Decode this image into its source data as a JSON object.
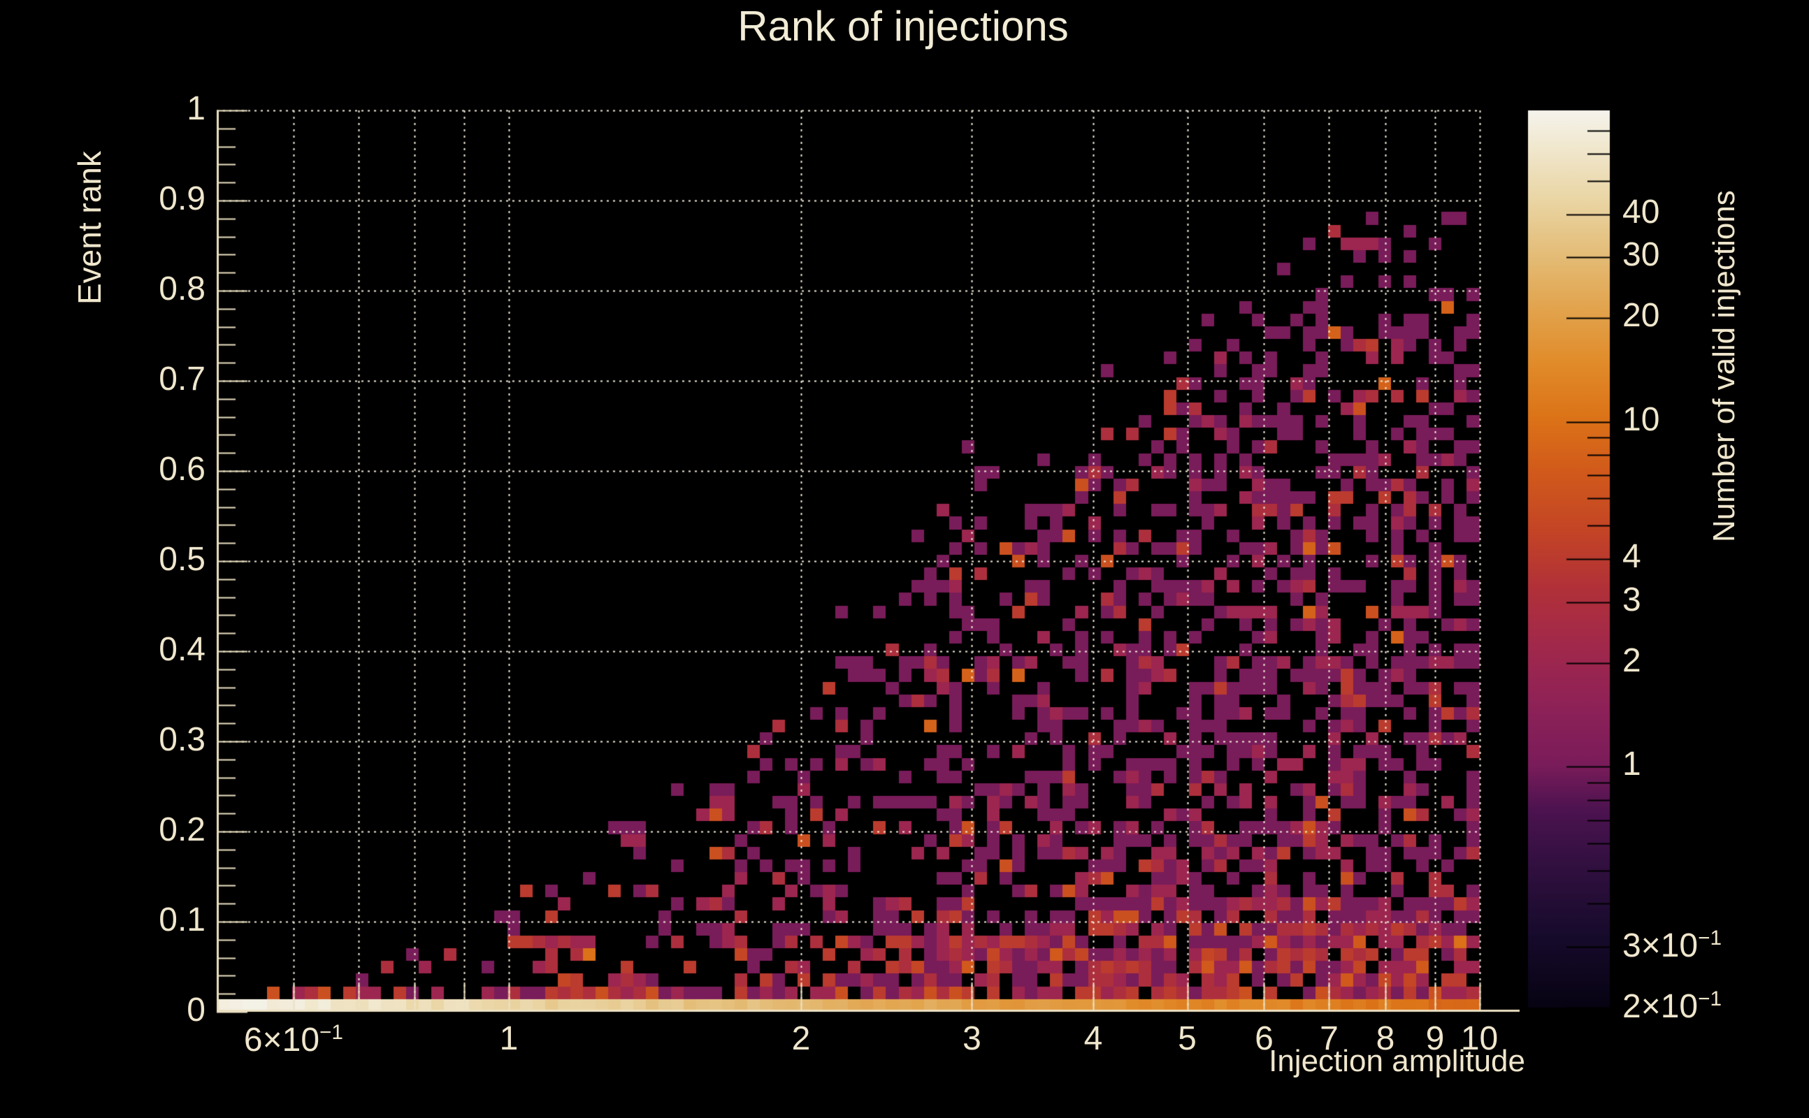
{
  "title": "Rank of injections",
  "colors": {
    "background": "#000000",
    "text": "#efe6cc",
    "title_text": "#f2ecd6",
    "axis_line": "#ece1c2",
    "grid_dots": "#f2ebd7",
    "colorbar_tick": "#000000"
  },
  "axes": {
    "x": {
      "title": "Injection amplitude",
      "scale": "log",
      "axis_range": [
        0.5,
        11
      ],
      "data_range": [
        0.5,
        10
      ],
      "gridlines": [
        0.6,
        0.7,
        0.8,
        0.9,
        1,
        2,
        3,
        4,
        5,
        6,
        7,
        8,
        9,
        10
      ],
      "tick_labels": [
        {
          "v": 0.6,
          "base": "6×10",
          "exp": "−1"
        },
        {
          "v": 1,
          "text": "1"
        },
        {
          "v": 2,
          "text": "2"
        },
        {
          "v": 3,
          "text": "3"
        },
        {
          "v": 4,
          "text": "4"
        },
        {
          "v": 5,
          "text": "5"
        },
        {
          "v": 6,
          "text": "6"
        },
        {
          "v": 7,
          "text": "7"
        },
        {
          "v": 8,
          "text": "8"
        },
        {
          "v": 9,
          "text": "9"
        },
        {
          "v": 10,
          "text": "10"
        }
      ]
    },
    "y": {
      "title": "Event rank",
      "scale": "linear",
      "range": [
        0,
        1
      ],
      "major_step": 0.1,
      "minor_step": 0.02,
      "tick_labels": [
        {
          "v": 1,
          "text": "1"
        },
        {
          "v": 0.9,
          "text": "0.9"
        },
        {
          "v": 0.8,
          "text": "0.8"
        },
        {
          "v": 0.7,
          "text": "0.7"
        },
        {
          "v": 0.6,
          "text": "0.6"
        },
        {
          "v": 0.5,
          "text": "0.5"
        },
        {
          "v": 0.4,
          "text": "0.4"
        },
        {
          "v": 0.3,
          "text": "0.3"
        },
        {
          "v": 0.2,
          "text": "0.2"
        },
        {
          "v": 0.1,
          "text": "0.1"
        },
        {
          "v": 0,
          "text": "0"
        }
      ]
    },
    "z": {
      "title": "Number of valid injections",
      "scale": "log",
      "range": [
        0.2,
        80
      ],
      "tick_labels": [
        {
          "v": 40,
          "text": "40"
        },
        {
          "v": 30,
          "text": "30"
        },
        {
          "v": 20,
          "text": "20"
        },
        {
          "v": 10,
          "text": "10"
        },
        {
          "v": 4,
          "text": "4"
        },
        {
          "v": 3,
          "text": "3"
        },
        {
          "v": 2,
          "text": "2"
        },
        {
          "v": 1,
          "text": "1"
        },
        {
          "v": 0.3,
          "base": "3×10",
          "exp": "−1"
        },
        {
          "v": 0.2,
          "base": "2×10",
          "exp": "−1"
        }
      ],
      "minor_ticks": [
        50,
        60,
        70,
        5,
        6,
        7,
        8,
        9,
        0.4,
        0.5,
        0.6,
        0.7,
        0.8,
        0.9
      ]
    }
  },
  "chart_data": {
    "type": "heatmap",
    "title": "Rank of injections",
    "xlabel": "Injection amplitude",
    "ylabel": "Event rank",
    "zlabel": "Number of valid injections",
    "x_bins": 100,
    "y_bins": 71,
    "x_range": [
      0.5,
      10
    ],
    "y_range": [
      0,
      1
    ],
    "z_range": [
      0.2,
      80
    ],
    "grid": true,
    "legend_position": "right-colorbar",
    "distribution_notes": "2D histogram, log x and log z. Bottom row (rank≈0) is filled for every amplitude with very high counts (≈70 at amplitude 0.5, cream-white) fading to ≈9 at amplitude 10 (orange). Scattered occupied bins appear above an envelope of maximum rank that rises with amplitude: ≈0.07 at 0.75, ≈0.14 at 1, ≈0.33 at 2, ≈0.63 at 3, ≈0.70 at 4.2, ≈0.78 at 5, ≈0.84 at 6, ≈0.88–0.89 at 7–10. Most occupied bins hold 1 count (dark magenta); counts 2–4 (crimson/red) are common below rank 0.2 and counts 4–10 (orange) concentrate in the band rank<0.1 for amplitudes 1.5–6.",
    "generator": {
      "seed": 20240917,
      "envelope": [
        [
          0.55,
          0.013
        ],
        [
          0.68,
          0.03
        ],
        [
          0.75,
          0.07
        ],
        [
          0.85,
          0.11
        ],
        [
          1.0,
          0.14
        ],
        [
          1.2,
          0.19
        ],
        [
          1.5,
          0.28
        ],
        [
          1.8,
          0.33
        ],
        [
          2.2,
          0.42
        ],
        [
          2.6,
          0.52
        ],
        [
          3.0,
          0.63
        ],
        [
          3.6,
          0.64
        ],
        [
          4.2,
          0.7
        ],
        [
          5.0,
          0.78
        ],
        [
          6.0,
          0.84
        ],
        [
          7.0,
          0.88
        ],
        [
          8.0,
          0.86
        ],
        [
          9.0,
          0.885
        ],
        [
          10.0,
          0.89
        ]
      ],
      "base_prob": [
        [
          0.55,
          0.0
        ],
        [
          0.7,
          0.05
        ],
        [
          0.9,
          0.11
        ],
        [
          1.2,
          0.17
        ],
        [
          1.8,
          0.27
        ],
        [
          2.5,
          0.36
        ],
        [
          3.5,
          0.44
        ],
        [
          5,
          0.48
        ],
        [
          7,
          0.52
        ],
        [
          10,
          0.54
        ]
      ],
      "row2_prob": [
        [
          0.55,
          0.25
        ],
        [
          0.8,
          0.45
        ],
        [
          1.2,
          0.65
        ],
        [
          2,
          0.85
        ],
        [
          3,
          0.9
        ],
        [
          6,
          0.85
        ],
        [
          10,
          0.8
        ]
      ],
      "bottom_row_counts": [
        [
          0.5,
          72
        ],
        [
          0.7,
          58
        ],
        [
          1,
          45
        ],
        [
          1.4,
          36
        ],
        [
          2,
          28
        ],
        [
          3,
          20
        ],
        [
          4.5,
          15
        ],
        [
          6,
          13
        ],
        [
          8,
          11
        ],
        [
          10,
          9
        ]
      ],
      "low_band_boost": 1.45,
      "very_low_boost": 1.6,
      "edge_prob_factor": 0.3,
      "outlier_prob": 0.012,
      "max_prob": 0.88,
      "count_weights_low": [
        [
          1,
          0.32
        ],
        [
          2,
          0.24
        ],
        [
          3,
          0.18
        ],
        [
          4,
          0.12
        ],
        [
          5,
          0.07
        ],
        [
          7,
          0.05
        ],
        [
          10,
          0.02
        ]
      ],
      "count_weights_mid": [
        [
          1,
          0.52
        ],
        [
          2,
          0.24
        ],
        [
          3,
          0.13
        ],
        [
          4,
          0.07
        ],
        [
          6,
          0.04
        ]
      ],
      "count_weights_high": [
        [
          1,
          0.69
        ],
        [
          2,
          0.16
        ],
        [
          3,
          0.08
        ],
        [
          4,
          0.04
        ],
        [
          6,
          0.02
        ],
        [
          8,
          0.01
        ]
      ],
      "row2_weights": [
        [
          1,
          0.2
        ],
        [
          2,
          0.3
        ],
        [
          3,
          0.25
        ],
        [
          4,
          0.15
        ],
        [
          6,
          0.1
        ]
      ]
    },
    "palette": [
      [
        0.0,
        "#070312"
      ],
      [
        0.08,
        "#170b2c"
      ],
      [
        0.16,
        "#321040"
      ],
      [
        0.22,
        "#4c1350"
      ],
      [
        0.27,
        "#7a1c5a"
      ],
      [
        0.33,
        "#8c2158"
      ],
      [
        0.4,
        "#a0284c"
      ],
      [
        0.47,
        "#b23138"
      ],
      [
        0.53,
        "#c34426"
      ],
      [
        0.6,
        "#d25b1b"
      ],
      [
        0.66,
        "#dc7418"
      ],
      [
        0.72,
        "#e18c2b"
      ],
      [
        0.78,
        "#e2a44e"
      ],
      [
        0.84,
        "#e4bd78"
      ],
      [
        0.9,
        "#ead5a4"
      ],
      [
        0.96,
        "#f1e8cf"
      ],
      [
        1.0,
        "#f5f3ec"
      ]
    ]
  }
}
